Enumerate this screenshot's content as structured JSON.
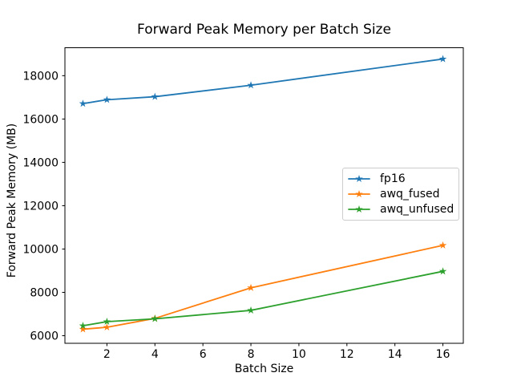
{
  "colors": {
    "background": "#ffffff",
    "axes_edge": "#000000",
    "tick_text": "#000000",
    "legend_border": "#cccccc"
  },
  "chart_data": {
    "type": "line",
    "title": "Forward Peak Memory per Batch Size",
    "xlabel": "Batch Size",
    "ylabel": "Forward Peak Memory (MB)",
    "x": [
      1,
      2,
      4,
      8,
      16
    ],
    "series": [
      {
        "name": "fp16",
        "color": "#1f77b4",
        "marker": "star",
        "values": [
          16710,
          16890,
          17030,
          17560,
          18770
        ]
      },
      {
        "name": "awq_fused",
        "color": "#ff7f0e",
        "marker": "star",
        "values": [
          6300,
          6390,
          6800,
          8210,
          10170
        ]
      },
      {
        "name": "awq_unfused",
        "color": "#2ca02c",
        "marker": "star",
        "values": [
          6460,
          6650,
          6780,
          7170,
          8970
        ]
      }
    ],
    "xticks": [
      2,
      4,
      6,
      8,
      10,
      12,
      14,
      16
    ],
    "yticks": [
      6000,
      8000,
      10000,
      12000,
      14000,
      16000,
      18000
    ],
    "xlim": [
      0.25,
      16.85
    ],
    "ylim": [
      5650,
      19290
    ],
    "grid": false,
    "legend_position": "center-right"
  }
}
